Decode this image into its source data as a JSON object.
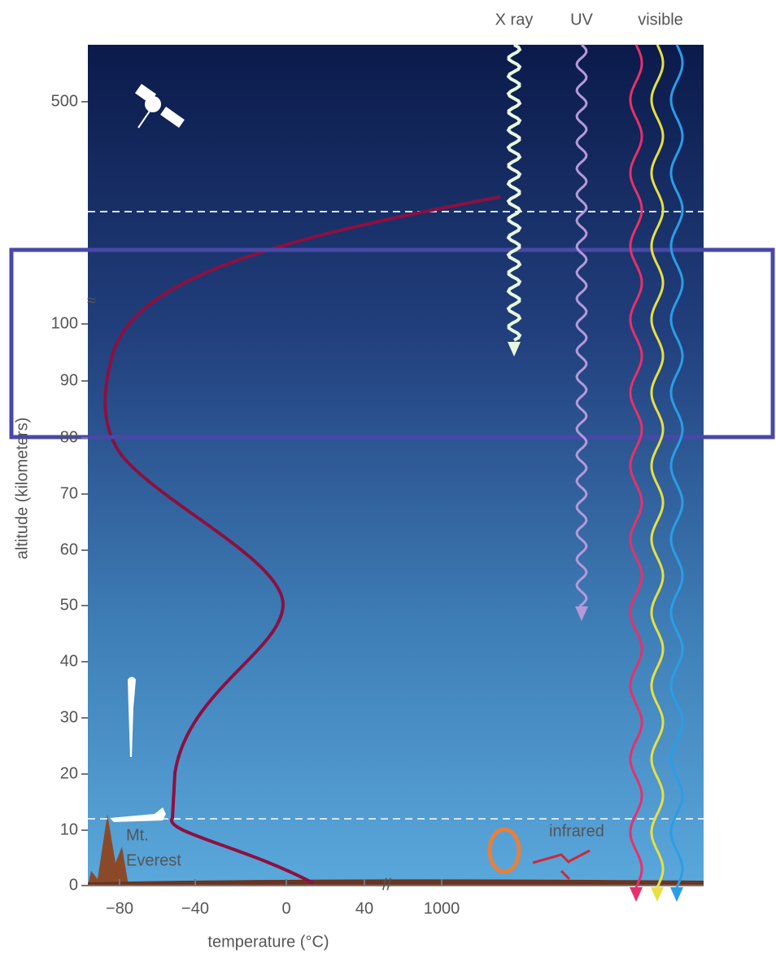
{
  "top_labels": [
    "X ray",
    "UV",
    "visible"
  ],
  "y_ticks": [
    "500",
    "100",
    "90",
    "80",
    "70",
    "60",
    "50",
    "40",
    "30",
    "20",
    "10",
    "0"
  ],
  "x_ticks": [
    "−80",
    "−40",
    "0",
    "40",
    "1000"
  ],
  "x_axis_label": "temperature (°C)",
  "y_axis_label": "altitude (kilometers)",
  "annotations": {
    "everest": [
      "Mt.",
      "Everest"
    ],
    "infrared": "infrared"
  }
}
